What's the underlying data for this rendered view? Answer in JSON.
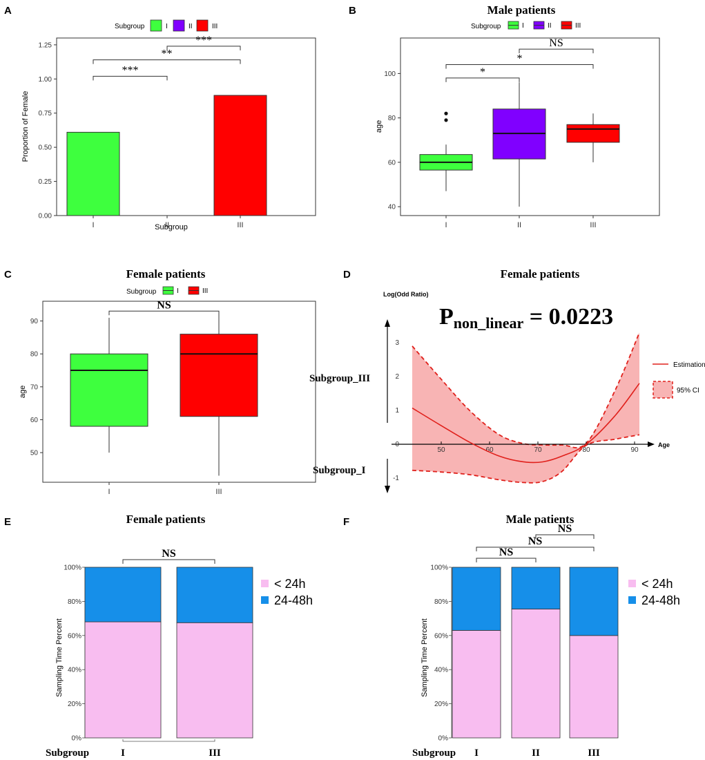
{
  "colors": {
    "I": "#3EFF3E",
    "II": "#8000FF",
    "III": "#FF0000",
    "lt24": "#F8BDF0",
    "h2448": "#168FE9",
    "ci": "#F8B4B4",
    "est": "#E0201B"
  },
  "panels": {
    "A": {
      "label": "A",
      "legend_title": "Subgroup",
      "legend_items": [
        "I",
        "II",
        "III"
      ]
    },
    "B": {
      "label": "B",
      "title": "Male patients",
      "legend_title": "Subgroup",
      "legend_items": [
        "I",
        "II",
        "III"
      ]
    },
    "C": {
      "label": "C",
      "title": "Female patients",
      "legend_title": "Subgroup",
      "legend_items": [
        "I",
        "III"
      ]
    },
    "D": {
      "label": "D",
      "title": "Female patients",
      "pvalue_main": "P",
      "pvalue_sub": "non_linear",
      "pvalue_eq": " = 0.0223",
      "upper_group": "Subgroup_III",
      "lower_group": "Subgroup_I",
      "legend_estimation": "Estimation",
      "legend_ci": "95% CI"
    },
    "E": {
      "label": "E",
      "title": "Female patients",
      "row_label": "Subgroup",
      "legend": [
        "< 24h",
        "24-48h"
      ]
    },
    "F": {
      "label": "F",
      "title": "Male patients",
      "row_label": "Subgroup",
      "legend": [
        "< 24h",
        "24-48h"
      ]
    }
  },
  "chart_data": [
    {
      "id": "A",
      "type": "bar",
      "categories": [
        "I",
        "II",
        "III"
      ],
      "values": [
        0.61,
        0.0,
        0.88
      ],
      "xlabel": "Subgroup",
      "ylabel": "Proportion of Female",
      "ylim": [
        0,
        1.3
      ],
      "yticks": [
        "0.00",
        "0.25",
        "0.50",
        "0.75",
        "1.00",
        "1.25"
      ],
      "annotations": [
        {
          "from": "I",
          "to": "II",
          "text": "***",
          "y": 1.02
        },
        {
          "from": "I",
          "to": "III",
          "text": "**",
          "y": 1.14
        },
        {
          "from": "II",
          "to": "III",
          "text": "***",
          "y": 1.24
        }
      ]
    },
    {
      "id": "B",
      "type": "box",
      "categories": [
        "I",
        "II",
        "III"
      ],
      "ylabel": "age",
      "ylim": [
        36,
        116
      ],
      "yticks": [
        "40",
        "60",
        "80",
        "100"
      ],
      "boxes": [
        {
          "min": 47,
          "q1": 56.5,
          "median": 60,
          "q3": 63.5,
          "max": 68,
          "outliers": [
            79,
            82
          ]
        },
        {
          "min": 40,
          "q1": 61.5,
          "median": 73,
          "q3": 84,
          "max": 96,
          "outliers": []
        },
        {
          "min": 60,
          "q1": 69,
          "median": 75,
          "q3": 77,
          "max": 82,
          "outliers": []
        }
      ],
      "annotations": [
        {
          "from": "I",
          "to": "II",
          "text": "*",
          "y": 98
        },
        {
          "from": "I",
          "to": "III",
          "text": "*",
          "y": 104
        },
        {
          "from": "II",
          "to": "III",
          "text": "NS",
          "y": 111
        }
      ]
    },
    {
      "id": "C",
      "type": "box",
      "categories": [
        "I",
        "III"
      ],
      "ylabel": "age",
      "ylim": [
        41,
        96
      ],
      "yticks": [
        "50",
        "60",
        "70",
        "80",
        "90"
      ],
      "boxes": [
        {
          "min": 50,
          "q1": 58,
          "median": 75,
          "q3": 80,
          "max": 91,
          "outliers": []
        },
        {
          "min": 43,
          "q1": 61,
          "median": 80,
          "q3": 86,
          "max": 92,
          "outliers": []
        }
      ],
      "annotations": [
        {
          "from": "I",
          "to": "III",
          "text": "NS",
          "y": 93
        }
      ]
    },
    {
      "id": "D",
      "type": "line",
      "xlabel": "Age",
      "ylabel": "Log(Odd Ratio)",
      "xlim": [
        40,
        93
      ],
      "ylim": [
        -1.5,
        3.6
      ],
      "xticks": [
        50,
        60,
        70,
        80,
        90
      ],
      "yticks": [
        -1,
        0,
        1,
        2,
        3
      ],
      "x": [
        44,
        50,
        56,
        62,
        67,
        71,
        75,
        80,
        86,
        91
      ],
      "estimate": [
        1.07,
        0.55,
        0.05,
        -0.35,
        -0.52,
        -0.52,
        -0.35,
        0.0,
        0.85,
        1.8
      ],
      "ci_lower": [
        -0.77,
        -0.82,
        -0.9,
        -1.05,
        -1.13,
        -1.1,
        -0.8,
        -0.03,
        0.15,
        0.28
      ],
      "ci_upper": [
        2.9,
        1.92,
        0.98,
        0.28,
        0.02,
        -0.02,
        -0.02,
        0.03,
        1.6,
        3.3
      ]
    },
    {
      "id": "E",
      "type": "bar",
      "stacked": true,
      "categories": [
        "I",
        "III"
      ],
      "ylabel": "Sampling Time Percent",
      "yticks": [
        "0%",
        "20%",
        "40%",
        "60%",
        "80%",
        "100%"
      ],
      "series": [
        {
          "name": "< 24h",
          "values": [
            68,
            67.5
          ]
        },
        {
          "name": "24-48h",
          "values": [
            32,
            32.5
          ]
        }
      ],
      "annotations": [
        {
          "from": "I",
          "to": "III",
          "text": "NS"
        }
      ]
    },
    {
      "id": "F",
      "type": "bar",
      "stacked": true,
      "categories": [
        "I",
        "II",
        "III"
      ],
      "ylabel": "Sampling Time Percent",
      "yticks": [
        "0%",
        "20%",
        "40%",
        "60%",
        "80%",
        "100%"
      ],
      "series": [
        {
          "name": "< 24h",
          "values": [
            63,
            75.5,
            60
          ]
        },
        {
          "name": "24-48h",
          "values": [
            37,
            24.5,
            40
          ]
        }
      ],
      "annotations": [
        {
          "from": "I",
          "to": "II",
          "text": "NS",
          "level": 0
        },
        {
          "from": "I",
          "to": "III",
          "text": "NS",
          "level": 1
        },
        {
          "from": "II",
          "to": "III",
          "text": "NS",
          "level": 2
        }
      ]
    }
  ]
}
